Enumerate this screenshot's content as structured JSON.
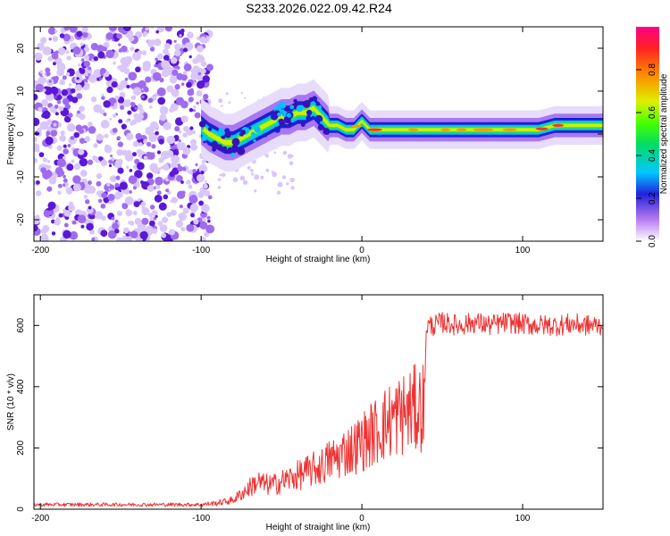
{
  "title": "S233.2026.022.09.42.R24",
  "colors": {
    "snr_line": "#ee3333",
    "background": "#ffffff",
    "frame": "#000000"
  },
  "chart_data": [
    {
      "type": "heatmap",
      "name": "spectrogram",
      "xlabel": "Height of straight line (km)",
      "ylabel": "Frequency (Hz)",
      "xlim": [
        -204,
        150
      ],
      "ylim": [
        -25,
        25
      ],
      "x_ticks": [
        -200,
        -100,
        0,
        100
      ],
      "y_ticks": [
        -20,
        -10,
        0,
        10,
        20
      ],
      "ridge": {
        "x": [
          -104,
          -95,
          -90,
          -85,
          -80,
          -75,
          -70,
          -65,
          -60,
          -55,
          -50,
          -45,
          -40,
          -35,
          -30,
          -25,
          -20,
          -15,
          -10,
          -5,
          0,
          5,
          10,
          15,
          20,
          30,
          40,
          50,
          60,
          70,
          80,
          90,
          100,
          110,
          120,
          130,
          140,
          150
        ],
        "freq": [
          3,
          0,
          -1,
          -2,
          -2,
          -1,
          0,
          1,
          2,
          3,
          4,
          4,
          5,
          5,
          6,
          4,
          2,
          2,
          1,
          1,
          3,
          1,
          1,
          1,
          1,
          1,
          1,
          1,
          1,
          1,
          1,
          1,
          1,
          1,
          2,
          2,
          2,
          2
        ]
      },
      "noise_region_x": [
        -204,
        -100
      ],
      "colorbar": {
        "label": "Normalized spectral amplitude",
        "range": [
          0,
          1
        ],
        "ticks": [
          0.0,
          0.2,
          0.4,
          0.6,
          0.8
        ]
      }
    },
    {
      "type": "line",
      "name": "snr",
      "xlabel": "Height of straight line (km)",
      "ylabel": "SNR (10 * v/v)",
      "xlim": [
        -204,
        150
      ],
      "ylim": [
        0,
        700
      ],
      "x_ticks": [
        -200,
        -100,
        0,
        100
      ],
      "y_ticks": [
        0,
        200,
        400,
        600
      ],
      "series": [
        {
          "name": "SNR",
          "x": [
            -204,
            -180,
            -160,
            -140,
            -120,
            -100,
            -90,
            -80,
            -75,
            -70,
            -65,
            -60,
            -55,
            -50,
            -45,
            -40,
            -35,
            -30,
            -25,
            -20,
            -15,
            -10,
            -5,
            0,
            5,
            10,
            15,
            20,
            25,
            30,
            35,
            39,
            40,
            45,
            50,
            60,
            70,
            80,
            90,
            100,
            110,
            120,
            130,
            140,
            150
          ],
          "values": [
            15,
            15,
            15,
            15,
            15,
            15,
            20,
            30,
            50,
            70,
            90,
            80,
            80,
            90,
            100,
            110,
            120,
            130,
            140,
            160,
            170,
            190,
            200,
            220,
            240,
            260,
            280,
            300,
            310,
            320,
            330,
            340,
            600,
            600,
            610,
            600,
            610,
            600,
            610,
            605,
            600,
            600,
            605,
            600,
            600
          ]
        }
      ]
    }
  ]
}
